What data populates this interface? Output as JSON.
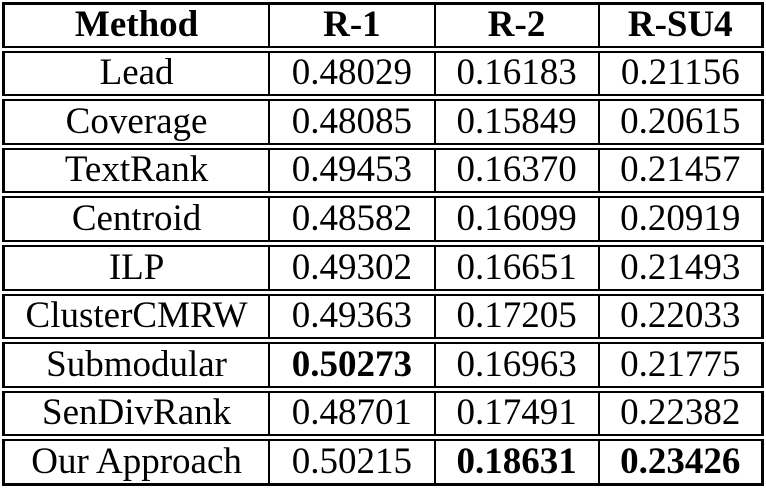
{
  "table": {
    "columns": [
      "Method",
      "R-1",
      "R-2",
      "R-SU4"
    ],
    "rows": [
      {
        "cells": [
          "Lead",
          "0.48029",
          "0.16183",
          "0.21156"
        ],
        "bold": []
      },
      {
        "cells": [
          "Coverage",
          "0.48085",
          "0.15849",
          "0.20615"
        ],
        "bold": []
      },
      {
        "cells": [
          "TextRank",
          "0.49453",
          "0.16370",
          "0.21457"
        ],
        "bold": []
      },
      {
        "cells": [
          "Centroid",
          "0.48582",
          "0.16099",
          "0.20919"
        ],
        "bold": []
      },
      {
        "cells": [
          "ILP",
          "0.49302",
          "0.16651",
          "0.21493"
        ],
        "bold": []
      },
      {
        "cells": [
          "ClusterCMRW",
          "0.49363",
          "0.17205",
          "0.22033"
        ],
        "bold": []
      },
      {
        "cells": [
          "Submodular",
          "0.50273",
          "0.16963",
          "0.21775"
        ],
        "bold": [
          1
        ]
      },
      {
        "cells": [
          "SenDivRank",
          "0.48701",
          "0.17491",
          "0.22382"
        ],
        "bold": []
      },
      {
        "cells": [
          "Our Approach",
          "0.50215",
          "0.18631",
          "0.23426"
        ],
        "bold": [
          2,
          3
        ]
      }
    ],
    "text_color": "#000000",
    "border_color": "#000000",
    "background_color": "#ffffff"
  },
  "chart_data": {
    "type": "table",
    "title": "",
    "categories": [
      "Lead",
      "Coverage",
      "TextRank",
      "Centroid",
      "ILP",
      "ClusterCMRW",
      "Submodular",
      "SenDivRank",
      "Our Approach"
    ],
    "series": [
      {
        "name": "R-1",
        "values": [
          0.48029,
          0.48085,
          0.49453,
          0.48582,
          0.49302,
          0.49363,
          0.50273,
          0.48701,
          0.50215
        ]
      },
      {
        "name": "R-2",
        "values": [
          0.16183,
          0.15849,
          0.1637,
          0.16099,
          0.16651,
          0.17205,
          0.16963,
          0.17491,
          0.18631
        ]
      },
      {
        "name": "R-SU4",
        "values": [
          0.21156,
          0.20615,
          0.21457,
          0.20919,
          0.21493,
          0.22033,
          0.21775,
          0.22382,
          0.23426
        ]
      }
    ]
  }
}
